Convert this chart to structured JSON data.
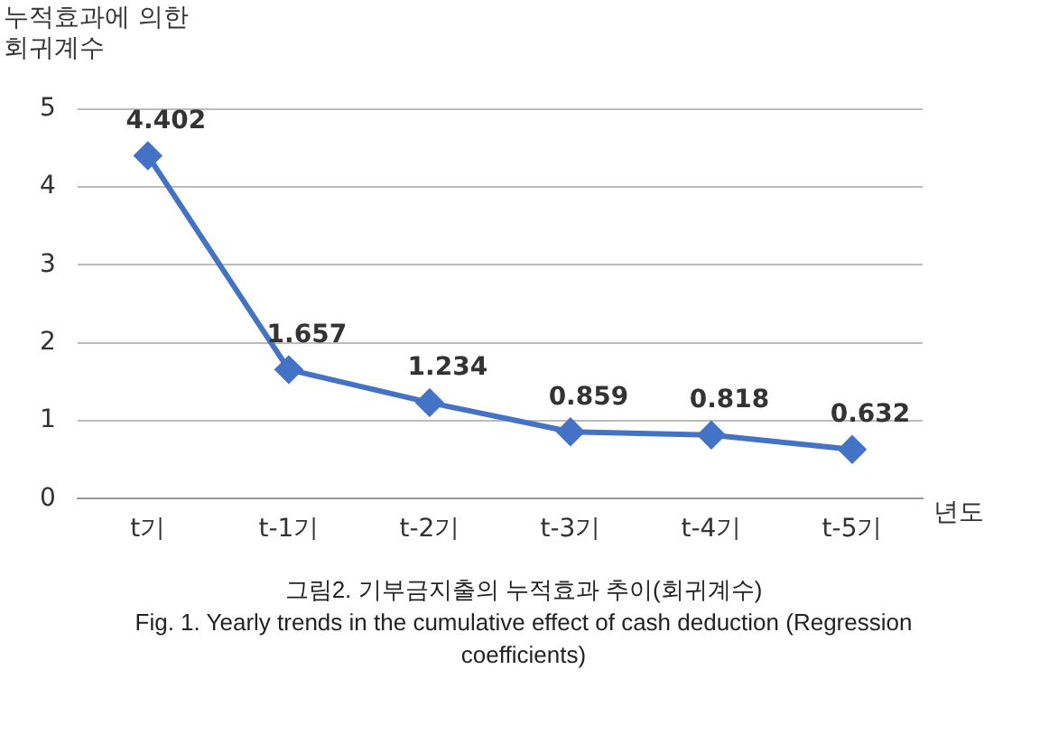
{
  "chart_data": {
    "type": "line",
    "ylabel": "누적효과에 의한\n회귀계수",
    "xlabel": "년도",
    "categories": [
      "t기",
      "t-1기",
      "t-2기",
      "t-3기",
      "t-4기",
      "t-5기"
    ],
    "series": [
      {
        "color": "#4472c4",
        "values": [
          4.402,
          1.657,
          1.234,
          0.859,
          0.818,
          0.632
        ]
      }
    ],
    "ylim": [
      0,
      5
    ],
    "yticks": [
      0,
      1,
      2,
      3,
      4,
      5
    ],
    "grid": "y",
    "legend": false,
    "marker": "diamond",
    "line_style": "solid",
    "data_labels": true,
    "annotations": [
      "그림2. 기부금지출의 누적효과 추이(회귀계수)",
      "Fig. 1. Yearly trends in the cumulative effect of cash deduction (Regression coefficients)"
    ]
  }
}
